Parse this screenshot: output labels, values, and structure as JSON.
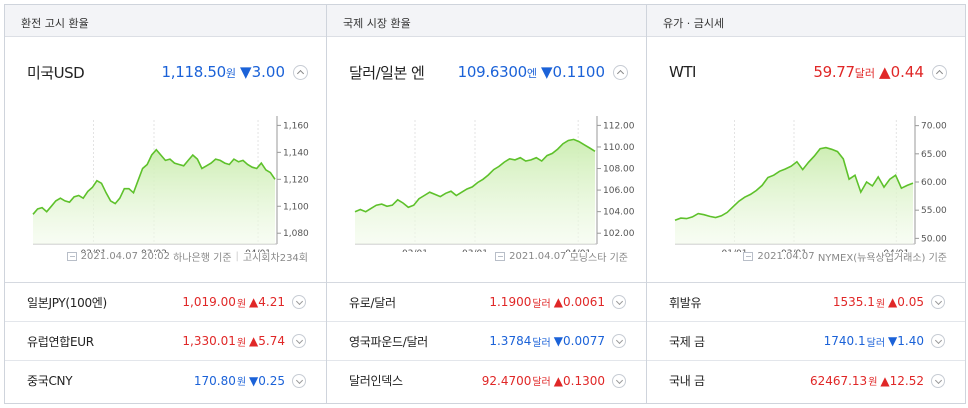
{
  "columns": [
    {
      "header": "환전 고시 환율",
      "main": {
        "name": "미국USD",
        "price": "1,118.50",
        "unit": "원",
        "arrow": "▼",
        "change": "3.00",
        "direction": "down",
        "source_date": "2021.04.07 20:02",
        "source_name": "하나은행 기준",
        "source_extra": "고시회차234회"
      },
      "rows": [
        {
          "name": "일본JPY(100엔)",
          "price": "1,019.00",
          "unit": "원",
          "arrow": "▲",
          "change": "4.21",
          "direction": "up"
        },
        {
          "name": "유럽연합EUR",
          "price": "1,330.01",
          "unit": "원",
          "arrow": "▲",
          "change": "5.74",
          "direction": "up"
        },
        {
          "name": "중국CNY",
          "price": "170.80",
          "unit": "원",
          "arrow": "▼",
          "change": "0.25",
          "direction": "down"
        }
      ]
    },
    {
      "header": "국제 시장 환율",
      "main": {
        "name": "달러/일본 엔",
        "price": "109.6300",
        "unit": "엔",
        "arrow": "▼",
        "change": "0.1100",
        "direction": "down",
        "source_date": "2021.04.07",
        "source_name": "모닝스타 기준",
        "source_extra": ""
      },
      "rows": [
        {
          "name": "유로/달러",
          "price": "1.1900",
          "unit": "달러",
          "arrow": "▲",
          "change": "0.0061",
          "direction": "up"
        },
        {
          "name": "영국파운드/달러",
          "price": "1.3784",
          "unit": "달러",
          "arrow": "▼",
          "change": "0.0077",
          "direction": "down"
        },
        {
          "name": "달러인덱스",
          "price": "92.4700",
          "unit": "달러",
          "arrow": "▲",
          "change": "0.1300",
          "direction": "up"
        }
      ]
    },
    {
      "header": "유가 · 금시세",
      "main": {
        "name": "WTI",
        "price": "59.77",
        "unit": "달러",
        "arrow": "▲",
        "change": "0.44",
        "direction": "up",
        "source_date": "2021.04.07",
        "source_name": "NYMEX(뉴욕상업거래소) 기준",
        "source_extra": ""
      },
      "rows": [
        {
          "name": "휘발유",
          "price": "1535.1",
          "unit": "원",
          "arrow": "▲",
          "change": "0.05",
          "direction": "up"
        },
        {
          "name": "국제 금",
          "price": "1740.1",
          "unit": "달러",
          "arrow": "▼",
          "change": "1.40",
          "direction": "down"
        },
        {
          "name": "국내 금",
          "price": "62467.13",
          "unit": "원",
          "arrow": "▲",
          "change": "12.52",
          "direction": "up"
        }
      ]
    }
  ],
  "colors": {
    "up": "#e02727",
    "down": "#1b62d8",
    "line": "#5ec12b",
    "fill": "#dff3cf"
  },
  "chart_data": [
    {
      "type": "area",
      "title": "",
      "x_ticks": [
        "02/01",
        "03/02",
        "04/01"
      ],
      "y_ticks": [
        "1,160",
        "1,140",
        "1,120",
        "1,100",
        "1,080"
      ],
      "ylim": [
        1072,
        1164
      ],
      "grid": true,
      "values": [
        1094,
        1098,
        1099,
        1096,
        1100,
        1104,
        1106,
        1104,
        1103,
        1107,
        1108,
        1106,
        1111,
        1114,
        1119,
        1117,
        1110,
        1104,
        1102,
        1106,
        1113,
        1113,
        1110,
        1119,
        1128,
        1131,
        1138,
        1142,
        1138,
        1134,
        1135,
        1132,
        1131,
        1130,
        1134,
        1138,
        1135,
        1128,
        1130,
        1132,
        1135,
        1134,
        1132,
        1131,
        1135,
        1133,
        1134,
        1131,
        1129,
        1128,
        1132,
        1127,
        1125,
        1120
      ]
    },
    {
      "type": "area",
      "title": "",
      "x_ticks": [
        "02/01",
        "03/01",
        "04/01"
      ],
      "y_ticks": [
        "112.00",
        "110.00",
        "108.00",
        "106.00",
        "104.00",
        "102.00"
      ],
      "ylim": [
        101,
        112.5
      ],
      "grid": true,
      "values": [
        104.0,
        104.2,
        104.0,
        104.3,
        104.6,
        104.7,
        104.5,
        104.6,
        105.1,
        104.8,
        104.4,
        104.6,
        105.2,
        105.5,
        105.8,
        105.6,
        105.4,
        105.7,
        105.9,
        105.5,
        105.8,
        106.1,
        106.3,
        106.7,
        107.0,
        107.4,
        107.9,
        108.2,
        108.6,
        108.9,
        108.8,
        109.0,
        108.7,
        108.8,
        109.0,
        108.7,
        109.2,
        109.4,
        109.8,
        110.3,
        110.6,
        110.7,
        110.5,
        110.2,
        109.9,
        109.6
      ]
    },
    {
      "type": "area",
      "title": "",
      "x_ticks": [
        "01/01",
        "03/01",
        "04/01"
      ],
      "y_ticks": [
        "70.00",
        "65.00",
        "60.00",
        "55.00",
        "50.00"
      ],
      "ylim": [
        49,
        71
      ],
      "grid": true,
      "values": [
        53.2,
        53.6,
        53.5,
        53.8,
        54.4,
        54.2,
        53.9,
        53.7,
        54.0,
        54.6,
        55.6,
        56.6,
        57.3,
        57.8,
        58.5,
        59.4,
        60.8,
        61.2,
        61.9,
        62.3,
        62.8,
        63.6,
        62.2,
        63.5,
        64.6,
        65.9,
        66.1,
        65.8,
        65.4,
        64.1,
        60.5,
        61.2,
        58.2,
        60.0,
        59.3,
        60.9,
        59.1,
        60.5,
        61.2,
        58.9,
        59.4,
        59.8
      ]
    }
  ]
}
